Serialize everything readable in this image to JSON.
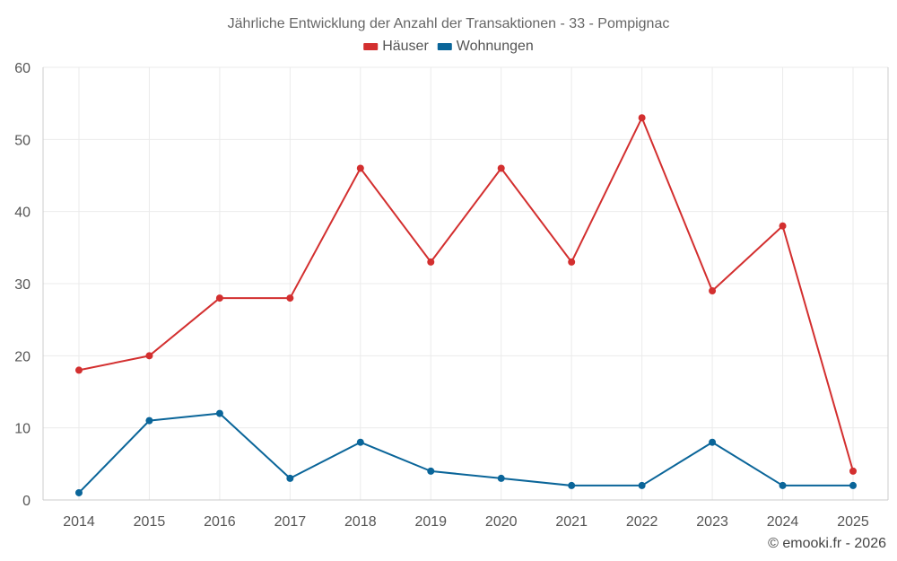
{
  "chart_data": {
    "type": "line",
    "title": "Jährliche Entwicklung der Anzahl der Transaktionen - 33 - Pompignac",
    "categories": [
      "2014",
      "2015",
      "2016",
      "2017",
      "2018",
      "2019",
      "2020",
      "2021",
      "2022",
      "2023",
      "2024",
      "2025"
    ],
    "series": [
      {
        "name": "Häuser",
        "color": "#d32f2f",
        "values": [
          18,
          20,
          28,
          28,
          46,
          33,
          46,
          33,
          53,
          29,
          38,
          4
        ]
      },
      {
        "name": "Wohnungen",
        "color": "#0a6599",
        "values": [
          1,
          11,
          12,
          3,
          8,
          4,
          3,
          2,
          2,
          8,
          2,
          2
        ]
      }
    ],
    "ylim": [
      0,
      60
    ],
    "yticks": [
      0,
      10,
      20,
      30,
      40,
      50,
      60
    ],
    "grid": true,
    "legend_position": "top-center",
    "xlabel": "",
    "ylabel": ""
  },
  "footer": {
    "copyright": "© emooki.fr - 2026"
  }
}
